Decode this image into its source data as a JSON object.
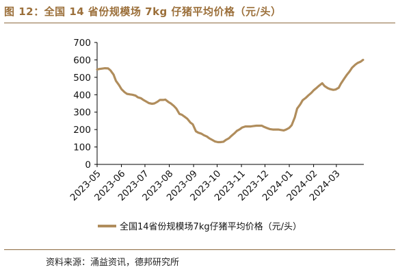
{
  "title": "图 12：全国 14 省份规模场 7kg 仔猪平均价格（元/头）",
  "source": "资料来源：涌益资讯，德邦研究所",
  "colors": {
    "series": "#b08d5c",
    "accent": "#8c6a3f",
    "title": "#9b6f3a"
  },
  "chart_data": {
    "type": "line",
    "title": "图 12：全国 14 省份规模场 7kg 仔猪平均价格（元/头）",
    "xlabel": "",
    "ylabel": "",
    "ylim": [
      0,
      700
    ],
    "yticks": [
      0,
      100,
      200,
      300,
      400,
      500,
      600,
      700
    ],
    "xticks": [
      "2023-05",
      "2023-06",
      "2023-07",
      "2023-08",
      "2023-09",
      "2023-10",
      "2023-11",
      "2023-12",
      "2024-01",
      "2024-02",
      "2024-03"
    ],
    "grid": false,
    "legend": "bottom-center",
    "series": [
      {
        "name": "全国14省份规模场7kg仔猪平均价格（元/头）",
        "x": [
          "2023-05-01",
          "2023-05-04",
          "2023-05-08",
          "2023-05-11",
          "2023-05-15",
          "2023-05-18",
          "2023-05-22",
          "2023-05-25",
          "2023-05-29",
          "2023-06-01",
          "2023-06-05",
          "2023-06-08",
          "2023-06-12",
          "2023-06-15",
          "2023-06-19",
          "2023-06-22",
          "2023-06-26",
          "2023-06-29",
          "2023-07-03",
          "2023-07-06",
          "2023-07-10",
          "2023-07-13",
          "2023-07-17",
          "2023-07-20",
          "2023-07-24",
          "2023-07-27",
          "2023-07-31",
          "2023-08-03",
          "2023-08-07",
          "2023-08-10",
          "2023-08-14",
          "2023-08-17",
          "2023-08-21",
          "2023-08-24",
          "2023-08-28",
          "2023-08-31",
          "2023-09-04",
          "2023-09-07",
          "2023-09-11",
          "2023-09-14",
          "2023-09-18",
          "2023-09-21",
          "2023-09-25",
          "2023-09-28",
          "2023-10-02",
          "2023-10-05",
          "2023-10-09",
          "2023-10-12",
          "2023-10-16",
          "2023-10-19",
          "2023-10-23",
          "2023-10-26",
          "2023-10-30",
          "2023-11-02",
          "2023-11-06",
          "2023-11-09",
          "2023-11-13",
          "2023-11-16",
          "2023-11-20",
          "2023-11-23",
          "2023-11-27",
          "2023-11-30",
          "2023-12-04",
          "2023-12-07",
          "2023-12-11",
          "2023-12-14",
          "2023-12-18",
          "2023-12-21",
          "2023-12-25",
          "2023-12-28",
          "2024-01-01",
          "2024-01-04",
          "2024-01-08",
          "2024-01-11",
          "2024-01-15",
          "2024-01-18",
          "2024-01-22",
          "2024-01-25",
          "2024-01-29",
          "2024-02-01",
          "2024-02-05",
          "2024-02-08",
          "2024-02-12",
          "2024-02-15",
          "2024-02-19",
          "2024-02-22",
          "2024-02-26",
          "2024-02-29",
          "2024-03-04",
          "2024-03-07",
          "2024-03-11",
          "2024-03-14",
          "2024-03-18",
          "2024-03-21",
          "2024-03-25",
          "2024-03-28",
          "2024-04-01",
          "2024-04-04"
        ],
        "values": [
          545,
          548,
          550,
          552,
          551,
          540,
          515,
          480,
          455,
          432,
          415,
          405,
          402,
          400,
          395,
          385,
          380,
          370,
          360,
          352,
          348,
          350,
          360,
          370,
          370,
          372,
          358,
          350,
          335,
          320,
          290,
          285,
          272,
          262,
          240,
          230,
          190,
          182,
          176,
          168,
          160,
          150,
          140,
          132,
          128,
          128,
          130,
          140,
          150,
          163,
          178,
          192,
          202,
          212,
          218,
          218,
          218,
          220,
          222,
          222,
          222,
          215,
          208,
          203,
          200,
          200,
          200,
          198,
          195,
          200,
          210,
          225,
          270,
          320,
          345,
          368,
          382,
          395,
          410,
          425,
          440,
          452,
          466,
          450,
          438,
          432,
          428,
          430,
          440,
          465,
          492,
          512,
          535,
          555,
          572,
          582,
          590,
          600
        ]
      }
    ]
  }
}
